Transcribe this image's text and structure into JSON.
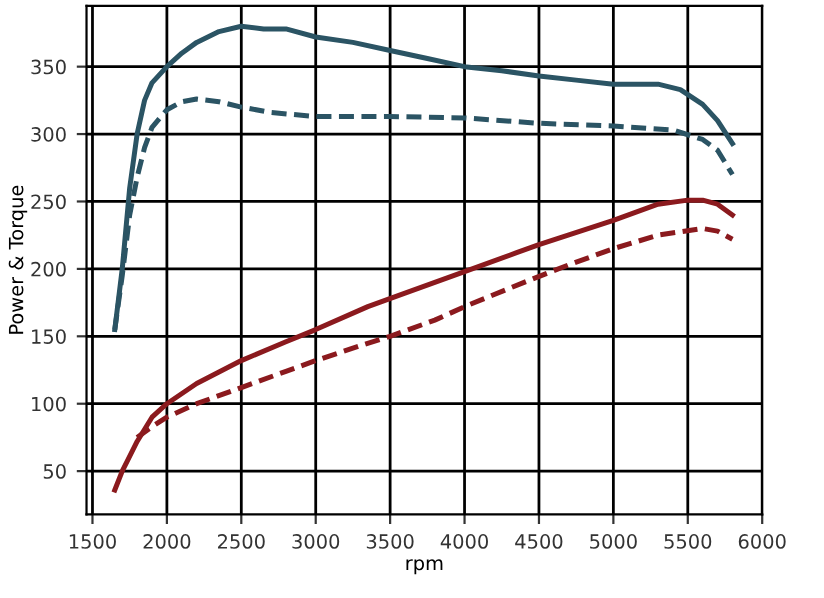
{
  "chart_data": {
    "type": "line",
    "xlabel": "rpm",
    "ylabel": "Power & Torque",
    "xlim": [
      1460,
      6000
    ],
    "xticks": [
      1500,
      2000,
      2500,
      3000,
      3500,
      4000,
      4500,
      5000,
      5500,
      6000
    ],
    "ylim": [
      18,
      395
    ],
    "yticks": [
      50,
      100,
      150,
      200,
      250,
      300,
      350
    ],
    "grid": true,
    "marker": "none",
    "series": [
      {
        "color": "#2b5464",
        "line_style": "solid",
        "x": [
          1650,
          1700,
          1750,
          1800,
          1850,
          1900,
          2000,
          2100,
          2200,
          2350,
          2500,
          2650,
          2800,
          3000,
          3250,
          3500,
          3750,
          4000,
          4250,
          4500,
          4750,
          5000,
          5300,
          5450,
          5600,
          5700,
          5800
        ],
        "values": [
          155,
          200,
          260,
          300,
          325,
          338,
          350,
          360,
          368,
          376,
          380,
          378,
          378,
          372,
          368,
          362,
          356,
          350,
          347,
          343,
          340,
          337,
          337,
          333,
          322,
          310,
          293
        ]
      },
      {
        "color": "#2b5464",
        "line_style": "dashed",
        "x": [
          1650,
          1700,
          1750,
          1800,
          1850,
          1900,
          2000,
          2100,
          2200,
          2350,
          2500,
          2700,
          3000,
          3500,
          4000,
          4500,
          5000,
          5400,
          5600,
          5700,
          5800
        ],
        "values": [
          155,
          195,
          240,
          268,
          290,
          305,
          318,
          324,
          326,
          324,
          320,
          316,
          313,
          313,
          312,
          308,
          306,
          303,
          296,
          288,
          270
        ]
      },
      {
        "color": "#8b1a1e",
        "line_style": "solid",
        "x": [
          1650,
          1700,
          1800,
          1900,
          2000,
          2200,
          2500,
          2800,
          3000,
          3350,
          3600,
          4000,
          4350,
          4500,
          5000,
          5300,
          5500,
          5600,
          5700,
          5800
        ],
        "values": [
          36,
          50,
          72,
          90,
          100,
          115,
          132,
          146,
          155,
          172,
          182,
          198,
          212,
          218,
          236,
          248,
          251,
          251,
          248,
          240
        ]
      },
      {
        "color": "#8b1a1e",
        "line_style": "dashed",
        "x": [
          1800,
          1900,
          2000,
          2200,
          2500,
          2800,
          3000,
          3300,
          3500,
          3800,
          4000,
          4400,
          4700,
          5000,
          5300,
          5600,
          5700,
          5800
        ],
        "values": [
          75,
          83,
          90,
          100,
          112,
          124,
          132,
          143,
          150,
          162,
          172,
          190,
          203,
          215,
          225,
          230,
          228,
          222
        ]
      }
    ]
  }
}
